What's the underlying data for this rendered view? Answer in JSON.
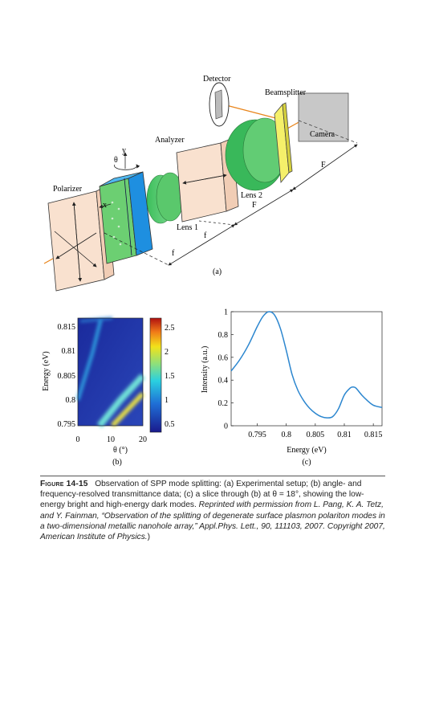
{
  "setup": {
    "labels": {
      "detector": "Detector",
      "beamsplitter": "Beamsplitter",
      "camera": "Camera",
      "analyzer": "Analyzer",
      "polarizer": "Polarizer",
      "lens1": "Lens 1",
      "lens2": "Lens 2",
      "theta": "θ",
      "y": "y",
      "x": "x",
      "f1": "f",
      "f2": "f",
      "F1": "F",
      "F2": "F"
    },
    "panel_label": "(a)"
  },
  "panel_b": {
    "panel_label": "(b)",
    "ylabel": "Energy (eV)",
    "xlabel": "θ (°)",
    "y_ticks": [
      "0.815",
      "0.81",
      "0.805",
      "0.8",
      "0.795"
    ],
    "x_ticks": [
      "0",
      "10",
      "20"
    ],
    "colorbar_ticks": [
      "2.5",
      "2",
      "1.5",
      "1",
      "0.5"
    ],
    "colors": {
      "low": "#1a2a9c",
      "mid": "#2ab0e0",
      "high": "#d81c1c"
    }
  },
  "chart_data": {
    "type": "line",
    "xlabel": "Energy (eV)",
    "ylabel": "Intensity (a.u.)",
    "x_ticks": [
      "0.795",
      "0.8",
      "0.805",
      "0.81",
      "0.815"
    ],
    "y_ticks": [
      "0",
      "0.2",
      "0.4",
      "0.6",
      "0.8",
      "1"
    ],
    "xlim": [
      0.7905,
      0.8165
    ],
    "ylim": [
      0,
      1
    ],
    "series": [
      {
        "x": [
          0.7905,
          0.792,
          0.7935,
          0.795,
          0.796,
          0.797,
          0.798,
          0.799,
          0.8,
          0.801,
          0.802,
          0.803,
          0.804,
          0.805,
          0.806,
          0.807,
          0.808,
          0.809,
          0.81,
          0.811,
          0.8115,
          0.812,
          0.813,
          0.814,
          0.815,
          0.8165
        ],
        "y": [
          0.48,
          0.58,
          0.71,
          0.87,
          0.96,
          1.0,
          0.97,
          0.85,
          0.66,
          0.45,
          0.31,
          0.22,
          0.155,
          0.11,
          0.08,
          0.07,
          0.08,
          0.15,
          0.27,
          0.33,
          0.34,
          0.33,
          0.27,
          0.22,
          0.18,
          0.16
        ]
      }
    ],
    "panel_label": "(c)"
  },
  "caption": {
    "figure_label": "Figure 14-15",
    "text_1": "Observation of SPP mode splitting: (a) Experimental setup; (b) angle- and frequency-resolved transmittance data; (c) a slice through (b) at θ = 18°, showing the low-energy bright and high-energy dark modes. ",
    "text_2": "Reprinted with permission from L. Pang, K. A. Tetz, and Y. Fainman, “Observation of the splitting of degenerate surface plasmon polariton modes in a two-dimensional metallic nanohole array,” Appl.Phys. Lett., 90, 111103, 2007. Copyright 2007, American Institute of Physics.",
    "text_3": ")"
  }
}
